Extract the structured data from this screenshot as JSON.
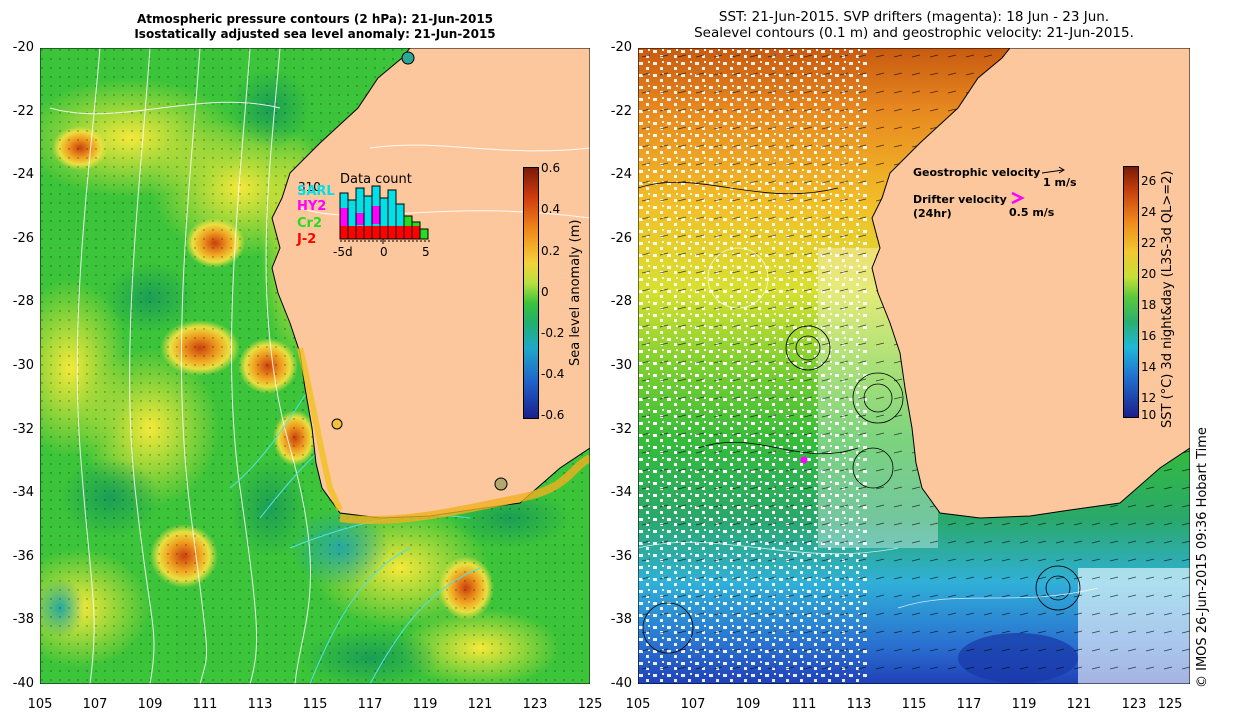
{
  "left_panel": {
    "title_line1": "Atmospheric pressure contours (2 hPa): 21-Jun-2015",
    "title_line2": "Isostatically adjusted sea level anomaly: 21-Jun-2015",
    "y_ticks": [
      "-20",
      "-22",
      "-24",
      "-26",
      "-28",
      "-30",
      "-32",
      "-34",
      "-36",
      "-38",
      "-40"
    ],
    "x_ticks": [
      "105",
      "107",
      "109",
      "111",
      "113",
      "115",
      "117",
      "119",
      "121",
      "123",
      "125"
    ],
    "colorbar_ticks": [
      "0.6",
      "0.4",
      "0.2",
      "0",
      "-0.2",
      "-0.4",
      "-0.6"
    ],
    "colorbar_label": "Sea level anomaly (m)",
    "inset": {
      "title": "Data count",
      "max_count": "310",
      "satellites": [
        "SARL",
        "HY2",
        "Cr2",
        "J-2"
      ],
      "x_ticks": [
        "-5d",
        "0",
        "5"
      ]
    }
  },
  "right_panel": {
    "title_line1": "SST: 21-Jun-2015. SVP drifters (magenta): 18 Jun - 23 Jun.",
    "title_line2": "Sealevel contours (0.1 m) and geostrophic velocity: 21-Jun-2015.",
    "y_ticks": [
      "-20",
      "-22",
      "-24",
      "-26",
      "-28",
      "-30",
      "-32",
      "-34",
      "-36",
      "-38",
      "-40"
    ],
    "x_ticks": [
      "105",
      "107",
      "109",
      "111",
      "113",
      "115",
      "117",
      "119",
      "121",
      "123",
      "125"
    ],
    "colorbar_ticks": [
      "26",
      "24",
      "22",
      "20",
      "18",
      "16",
      "14",
      "12",
      "10"
    ],
    "colorbar_label": "SST (°C) 3d night&day (L3S-3d QL>=2)",
    "legend": {
      "geo_label": "Geostrophic velocity",
      "geo_scale": "1 m/s",
      "drifter_label": "Drifter velocity",
      "drifter_sub": "(24hr)",
      "drifter_scale": "0.5 m/s"
    }
  },
  "credit": "© IMOS 26-Jun-2015 09:36 Hobart Time",
  "colors": {
    "land": "#fcc79c",
    "sla_high": "#c8240c",
    "sla_mid": "#2bbf3c",
    "sla_low": "#1d2f9c",
    "drifter": "#ff00ff",
    "sat_sarl": "#00e0e8",
    "sat_hy2": "#ff00ff",
    "sat_cr2": "#22dd22",
    "sat_j2": "#ff0000"
  }
}
